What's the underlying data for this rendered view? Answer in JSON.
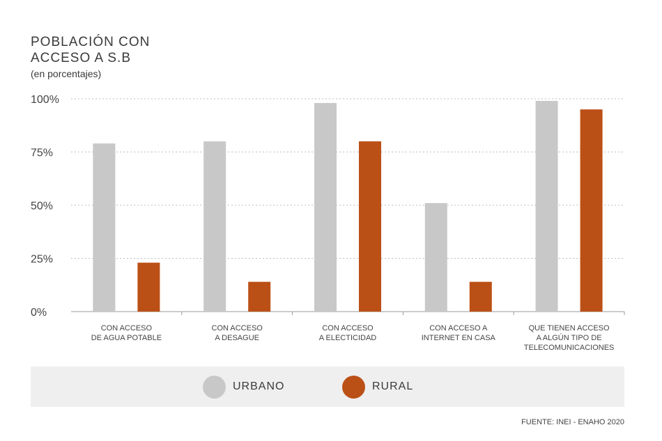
{
  "title_lines": [
    "POBLACIÓN CON",
    "ACCESO A S.B"
  ],
  "subtitle": "(en porcentajes)",
  "source": "FUENTE: INEI - ENAHO 2020",
  "colors": {
    "urbano": "#c8c8c8",
    "rural": "#bb5017",
    "grid": "#bdbdbd",
    "axis": "#999999"
  },
  "chart_data": {
    "type": "bar",
    "categories": [
      [
        "CON ACCESO",
        "DE AGUA POTABLE"
      ],
      [
        "CON ACCESO",
        "A DESAGUE"
      ],
      [
        "CON ACCESO",
        "A ELECTICIDAD"
      ],
      [
        "CON ACCESO A",
        "INTERNET EN CASA"
      ],
      [
        "QUE TIENEN ACCESO",
        "A ALGÚN TIPO DE",
        "TELECOMUNICACIONES"
      ]
    ],
    "series": [
      {
        "name": "URBANO",
        "values": [
          79,
          80,
          98,
          51,
          99
        ]
      },
      {
        "name": "RURAL",
        "values": [
          23,
          14,
          80,
          14,
          95
        ]
      }
    ],
    "ylim": [
      0,
      100
    ],
    "yticks": [
      "0%",
      "25%",
      "50%",
      "75%",
      "100%"
    ],
    "grid": true,
    "legend": "bottom"
  }
}
